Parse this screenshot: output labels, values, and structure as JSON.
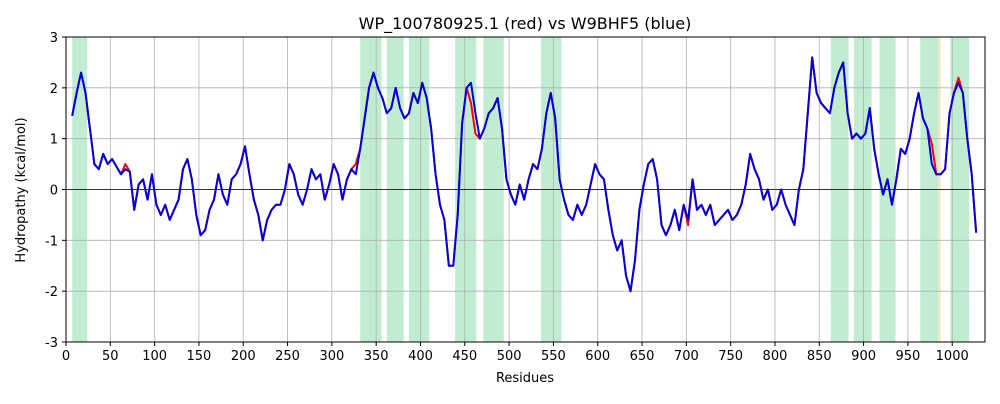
{
  "chart_data": {
    "type": "line",
    "title": "WP_100780925.1 (red) vs W9BHF5 (blue)",
    "x_label": "Residues",
    "y_label": "Hydropathy (kcal/mol)",
    "xlim": [
      0,
      1037
    ],
    "ylim": [
      -3,
      3
    ],
    "xticks": [
      0,
      50,
      100,
      150,
      200,
      250,
      300,
      350,
      400,
      450,
      500,
      550,
      600,
      650,
      700,
      750,
      800,
      850,
      900,
      950,
      1000
    ],
    "yticks": [
      -3,
      -2,
      -1,
      0,
      1,
      2,
      3
    ],
    "grid": true,
    "zero_line": true,
    "regions": [
      {
        "start": 7,
        "end": 24,
        "color": "#c0edd2"
      },
      {
        "start": 332,
        "end": 356,
        "color": "#c0edd2"
      },
      {
        "start": 362,
        "end": 381,
        "color": "#c0edd2"
      },
      {
        "start": 387,
        "end": 410,
        "color": "#c0edd2"
      },
      {
        "start": 439,
        "end": 463,
        "color": "#c0edd2"
      },
      {
        "start": 471,
        "end": 494,
        "color": "#c0edd2"
      },
      {
        "start": 536,
        "end": 559,
        "color": "#c0edd2"
      },
      {
        "start": 863,
        "end": 883,
        "color": "#c0edd2"
      },
      {
        "start": 889,
        "end": 909,
        "color": "#c0edd2"
      },
      {
        "start": 918,
        "end": 936,
        "color": "#c0edd2"
      },
      {
        "start": 964,
        "end": 984,
        "color": "#c0edd2"
      },
      {
        "start": 984,
        "end": 987,
        "color": "#fde3bd"
      },
      {
        "start": 998,
        "end": 1019,
        "color": "#c0edd2"
      }
    ],
    "x": [
      7,
      12,
      17,
      22,
      27,
      32,
      37,
      42,
      47,
      52,
      57,
      62,
      67,
      72,
      77,
      82,
      87,
      92,
      97,
      102,
      107,
      112,
      117,
      122,
      127,
      132,
      137,
      142,
      147,
      152,
      157,
      162,
      167,
      172,
      177,
      182,
      187,
      192,
      197,
      202,
      207,
      212,
      217,
      222,
      227,
      232,
      237,
      242,
      247,
      252,
      257,
      262,
      267,
      272,
      277,
      282,
      287,
      292,
      297,
      302,
      307,
      312,
      317,
      322,
      327,
      332,
      337,
      342,
      347,
      352,
      357,
      362,
      367,
      372,
      377,
      382,
      387,
      392,
      397,
      402,
      407,
      412,
      417,
      422,
      427,
      432,
      437,
      442,
      447,
      452,
      457,
      462,
      467,
      472,
      477,
      482,
      487,
      492,
      497,
      502,
      507,
      512,
      517,
      522,
      527,
      532,
      537,
      542,
      547,
      552,
      557,
      562,
      567,
      572,
      577,
      582,
      587,
      592,
      597,
      602,
      607,
      612,
      617,
      622,
      627,
      632,
      637,
      642,
      647,
      652,
      657,
      662,
      667,
      672,
      677,
      682,
      687,
      692,
      697,
      702,
      707,
      712,
      717,
      722,
      727,
      732,
      737,
      742,
      747,
      752,
      757,
      762,
      767,
      772,
      777,
      782,
      787,
      792,
      797,
      802,
      807,
      812,
      817,
      822,
      827,
      832,
      837,
      842,
      847,
      852,
      857,
      862,
      867,
      872,
      877,
      882,
      887,
      892,
      897,
      902,
      907,
      912,
      917,
      922,
      927,
      932,
      937,
      942,
      947,
      952,
      957,
      962,
      967,
      972,
      977,
      982,
      987,
      992,
      997,
      1002,
      1007,
      1012,
      1017,
      1022,
      1027
    ],
    "series": [
      {
        "color": "#ff0000",
        "values": [
          1.45,
          1.9,
          2.3,
          1.9,
          1.2,
          0.5,
          0.4,
          0.7,
          0.5,
          0.6,
          0.45,
          0.3,
          0.5,
          0.35,
          -0.4,
          0.1,
          0.2,
          -0.2,
          0.3,
          -0.3,
          -0.5,
          -0.3,
          -0.6,
          -0.4,
          -0.2,
          0.4,
          0.6,
          0.2,
          -0.5,
          -0.9,
          -0.8,
          -0.4,
          -0.2,
          0.3,
          -0.1,
          -0.3,
          0.2,
          0.3,
          0.5,
          0.85,
          0.3,
          -0.2,
          -0.5,
          -1.0,
          -0.6,
          -0.4,
          -0.3,
          -0.3,
          0.0,
          0.5,
          0.3,
          -0.1,
          -0.3,
          0.0,
          0.4,
          0.2,
          0.3,
          -0.2,
          0.1,
          0.5,
          0.3,
          -0.2,
          0.2,
          0.4,
          0.5,
          0.8,
          1.4,
          2.0,
          2.3,
          2.0,
          1.8,
          1.5,
          1.6,
          2.0,
          1.6,
          1.4,
          1.5,
          1.9,
          1.7,
          2.1,
          1.8,
          1.2,
          0.3,
          -0.3,
          -0.6,
          -1.5,
          -1.5,
          -0.5,
          1.3,
          2.0,
          1.7,
          1.1,
          1.0,
          1.2,
          1.5,
          1.6,
          1.8,
          1.2,
          0.2,
          -0.1,
          -0.3,
          0.1,
          -0.2,
          0.2,
          0.5,
          0.4,
          0.8,
          1.5,
          1.9,
          1.4,
          0.2,
          -0.2,
          -0.5,
          -0.6,
          -0.3,
          -0.5,
          -0.3,
          0.1,
          0.5,
          0.3,
          0.2,
          -0.4,
          -0.9,
          -1.2,
          -1.0,
          -1.7,
          -2.0,
          -1.4,
          -0.4,
          0.1,
          0.5,
          0.6,
          0.2,
          -0.7,
          -0.9,
          -0.7,
          -0.4,
          -0.8,
          -0.3,
          -0.7,
          0.2,
          -0.4,
          -0.3,
          -0.5,
          -0.3,
          -0.7,
          -0.6,
          -0.5,
          -0.4,
          -0.6,
          -0.5,
          -0.3,
          0.1,
          0.7,
          0.4,
          0.2,
          -0.2,
          0.0,
          -0.4,
          -0.3,
          0.0,
          -0.3,
          -0.5,
          -0.7,
          0.0,
          0.4,
          1.5,
          2.6,
          1.9,
          1.7,
          1.6,
          1.5,
          2.0,
          2.3,
          2.5,
          1.5,
          1.0,
          1.1,
          1.0,
          1.1,
          1.6,
          0.8,
          0.3,
          -0.1,
          0.2,
          -0.3,
          0.2,
          0.8,
          0.7,
          1.0,
          1.5,
          1.9,
          1.4,
          1.2,
          0.9,
          0.3,
          0.3,
          0.4,
          1.5,
          1.9,
          2.2,
          1.9,
          1.0,
          0.3,
          -0.85
        ]
      },
      {
        "color": "#0000dd",
        "values": [
          1.45,
          1.9,
          2.3,
          1.9,
          1.2,
          0.5,
          0.4,
          0.7,
          0.5,
          0.6,
          0.45,
          0.3,
          0.4,
          0.35,
          -0.4,
          0.1,
          0.2,
          -0.2,
          0.3,
          -0.3,
          -0.5,
          -0.3,
          -0.6,
          -0.4,
          -0.2,
          0.4,
          0.6,
          0.2,
          -0.5,
          -0.9,
          -0.8,
          -0.4,
          -0.2,
          0.3,
          -0.1,
          -0.3,
          0.2,
          0.3,
          0.5,
          0.85,
          0.3,
          -0.2,
          -0.5,
          -1.0,
          -0.6,
          -0.4,
          -0.3,
          -0.3,
          0.0,
          0.5,
          0.3,
          -0.1,
          -0.3,
          0.0,
          0.4,
          0.2,
          0.3,
          -0.2,
          0.1,
          0.5,
          0.3,
          -0.2,
          0.2,
          0.4,
          0.3,
          0.8,
          1.4,
          2.0,
          2.3,
          2.0,
          1.8,
          1.5,
          1.6,
          2.0,
          1.6,
          1.4,
          1.5,
          1.9,
          1.7,
          2.1,
          1.8,
          1.2,
          0.3,
          -0.3,
          -0.6,
          -1.5,
          -1.5,
          -0.5,
          1.3,
          2.0,
          2.1,
          1.5,
          1.0,
          1.2,
          1.5,
          1.6,
          1.8,
          1.2,
          0.2,
          -0.1,
          -0.3,
          0.1,
          -0.2,
          0.2,
          0.5,
          0.4,
          0.8,
          1.5,
          1.9,
          1.4,
          0.2,
          -0.2,
          -0.5,
          -0.6,
          -0.3,
          -0.5,
          -0.3,
          0.1,
          0.5,
          0.3,
          0.2,
          -0.4,
          -0.9,
          -1.2,
          -1.0,
          -1.7,
          -2.0,
          -1.4,
          -0.4,
          0.1,
          0.5,
          0.6,
          0.2,
          -0.7,
          -0.9,
          -0.7,
          -0.4,
          -0.8,
          -0.3,
          -0.6,
          0.2,
          -0.4,
          -0.3,
          -0.5,
          -0.3,
          -0.7,
          -0.6,
          -0.5,
          -0.4,
          -0.6,
          -0.5,
          -0.3,
          0.1,
          0.7,
          0.4,
          0.2,
          -0.2,
          0.0,
          -0.4,
          -0.3,
          0.0,
          -0.3,
          -0.5,
          -0.7,
          0.0,
          0.4,
          1.5,
          2.6,
          1.9,
          1.7,
          1.6,
          1.5,
          2.0,
          2.3,
          2.5,
          1.5,
          1.0,
          1.1,
          1.0,
          1.1,
          1.6,
          0.8,
          0.3,
          -0.1,
          0.2,
          -0.3,
          0.2,
          0.8,
          0.7,
          1.0,
          1.5,
          1.9,
          1.4,
          1.2,
          0.5,
          0.3,
          0.3,
          0.4,
          1.5,
          1.9,
          2.1,
          1.9,
          1.0,
          0.3,
          -0.85
        ]
      }
    ]
  }
}
